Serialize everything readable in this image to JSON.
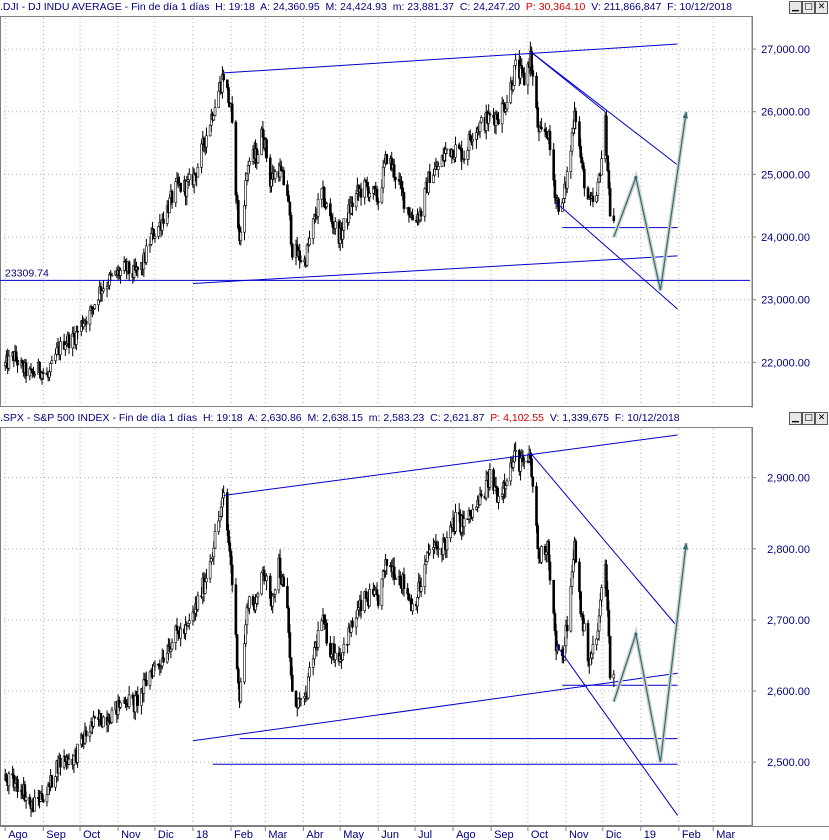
{
  "panels": [
    {
      "symbol": ".DJI",
      "name": "DJ INDU AVERAGE",
      "period": "Fin de día 1 días",
      "time_label": "H:",
      "time": "19:18",
      "open_label": "A:",
      "open": "24,360.95",
      "high_label": "M:",
      "high": "24,424.93",
      "low_label": "m:",
      "low": "23,881.37",
      "close_label": "C:",
      "close": "24,247.20",
      "p_label": "P:",
      "p": "30,364.10",
      "vol_label": "V:",
      "vol": "211,866,847",
      "date_label": "F:",
      "date": "10/12/2018",
      "ref_label": "23309.74"
    },
    {
      "symbol": ".SPX",
      "name": "S&P 500 INDEX",
      "period": "Fin de día 1 días",
      "time_label": "H:",
      "time": "19:18",
      "open_label": "A:",
      "open": "2,630.86",
      "high_label": "M:",
      "high": "2,638.15",
      "low_label": "m:",
      "low": "2,583.23",
      "close_label": "C:",
      "close": "2,621.87",
      "p_label": "P:",
      "p": "4,102.55",
      "vol_label": "V:",
      "vol": "1,339,675",
      "date_label": "F:",
      "date": "10/12/2018"
    }
  ],
  "window_buttons": [
    "minimize-icon",
    "maximize-icon",
    "close-icon"
  ],
  "colors": {
    "price": "#000000",
    "trendline": "#0000cc",
    "forecast": "#2f6f6f",
    "axis_text": "#000080",
    "grid": "#b0b0b0",
    "p_value": "#d00000"
  },
  "chart_data": [
    {
      "type": "candlestick",
      "title": ".DJI - DJ INDU AVERAGE",
      "ylim": [
        21400,
        27400
      ],
      "y_ticks": [
        22000,
        23000,
        24000,
        25000,
        26000,
        27000
      ],
      "y_tick_labels": [
        "22,000.00",
        "23,000.00",
        "24,000.00",
        "25,000.00",
        "26,000.00",
        "27,000.00"
      ],
      "x_range": [
        "2017-07-31",
        "2019-03-31"
      ],
      "series": [
        {
          "values": [
            [
              "2017-08-01",
              21950
            ],
            [
              "2017-08-08",
              22100
            ],
            [
              "2017-08-15",
              21900
            ],
            [
              "2017-08-22",
              21800
            ],
            [
              "2017-08-29",
              21900
            ],
            [
              "2017-09-05",
              21750
            ],
            [
              "2017-09-12",
              22150
            ],
            [
              "2017-09-19",
              22350
            ],
            [
              "2017-09-26",
              22380
            ],
            [
              "2017-10-03",
              22650
            ],
            [
              "2017-10-10",
              22800
            ],
            [
              "2017-10-17",
              23150
            ],
            [
              "2017-10-24",
              23300
            ],
            [
              "2017-10-31",
              23400
            ],
            [
              "2017-11-07",
              23500
            ],
            [
              "2017-11-14",
              23400
            ],
            [
              "2017-11-21",
              23550
            ],
            [
              "2017-11-28",
              24000
            ],
            [
              "2017-12-05",
              24200
            ],
            [
              "2017-12-12",
              24500
            ],
            [
              "2017-12-19",
              24800
            ],
            [
              "2017-12-27",
              24800
            ],
            [
              "2018-01-03",
              25000
            ],
            [
              "2018-01-10",
              25500
            ],
            [
              "2018-01-17",
              26000
            ],
            [
              "2018-01-26",
              26600
            ],
            [
              "2018-02-01",
              26000
            ],
            [
              "2018-02-08",
              23900
            ],
            [
              "2018-02-15",
              25200
            ],
            [
              "2018-02-22",
              25300
            ],
            [
              "2018-02-27",
              25700
            ],
            [
              "2018-03-05",
              24900
            ],
            [
              "2018-03-12",
              25100
            ],
            [
              "2018-03-19",
              24700
            ],
            [
              "2018-03-23",
              23800
            ],
            [
              "2018-04-02",
              23600
            ],
            [
              "2018-04-09",
              24200
            ],
            [
              "2018-04-16",
              24700
            ],
            [
              "2018-04-23",
              24300
            ],
            [
              "2018-05-01",
              24000
            ],
            [
              "2018-05-08",
              24400
            ],
            [
              "2018-05-15",
              24700
            ],
            [
              "2018-05-22",
              24800
            ],
            [
              "2018-06-01",
              24600
            ],
            [
              "2018-06-08",
              25300
            ],
            [
              "2018-06-15",
              25000
            ],
            [
              "2018-06-22",
              24600
            ],
            [
              "2018-06-29",
              24300
            ],
            [
              "2018-07-06",
              24400
            ],
            [
              "2018-07-13",
              25000
            ],
            [
              "2018-07-20",
              25100
            ],
            [
              "2018-07-27",
              25400
            ],
            [
              "2018-08-03",
              25400
            ],
            [
              "2018-08-10",
              25300
            ],
            [
              "2018-08-17",
              25700
            ],
            [
              "2018-08-24",
              25800
            ],
            [
              "2018-08-31",
              25900
            ],
            [
              "2018-09-07",
              25950
            ],
            [
              "2018-09-14",
              26200
            ],
            [
              "2018-09-21",
              26700
            ],
            [
              "2018-09-28",
              26500
            ],
            [
              "2018-10-03",
              26900
            ],
            [
              "2018-10-10",
              25600
            ],
            [
              "2018-10-17",
              25700
            ],
            [
              "2018-10-24",
              24600
            ],
            [
              "2018-10-29",
              24450
            ],
            [
              "2018-11-05",
              25400
            ],
            [
              "2018-11-08",
              26100
            ],
            [
              "2018-11-14",
              25100
            ],
            [
              "2018-11-20",
              24500
            ],
            [
              "2018-11-26",
              24600
            ],
            [
              "2018-12-03",
              25800
            ],
            [
              "2018-12-07",
              24400
            ],
            [
              "2018-12-10",
              24250
            ]
          ]
        }
      ],
      "annotations": [
        "23309.74"
      ]
    },
    {
      "type": "candlestick",
      "title": ".SPX - S&P 500 INDEX",
      "ylim": [
        2420,
        2960
      ],
      "y_ticks": [
        2500,
        2600,
        2700,
        2800,
        2900
      ],
      "y_tick_labels": [
        "2,500.00",
        "2,600.00",
        "2,700.00",
        "2,800.00",
        "2,900.00"
      ],
      "x_range": [
        "2017-07-31",
        "2019-03-31"
      ],
      "series": [
        {
          "values": [
            [
              "2017-08-01",
              2475
            ],
            [
              "2017-08-08",
              2470
            ],
            [
              "2017-08-15",
              2465
            ],
            [
              "2017-08-22",
              2435
            ],
            [
              "2017-08-29",
              2450
            ],
            [
              "2017-09-05",
              2460
            ],
            [
              "2017-09-12",
              2495
            ],
            [
              "2017-09-19",
              2505
            ],
            [
              "2017-09-26",
              2505
            ],
            [
              "2017-10-03",
              2530
            ],
            [
              "2017-10-10",
              2550
            ],
            [
              "2017-10-17",
              2560
            ],
            [
              "2017-10-24",
              2565
            ],
            [
              "2017-10-31",
              2575
            ],
            [
              "2017-11-07",
              2590
            ],
            [
              "2017-11-14",
              2580
            ],
            [
              "2017-11-21",
              2600
            ],
            [
              "2017-11-28",
              2630
            ],
            [
              "2017-12-05",
              2640
            ],
            [
              "2017-12-12",
              2665
            ],
            [
              "2017-12-19",
              2680
            ],
            [
              "2017-12-27",
              2685
            ],
            [
              "2018-01-03",
              2715
            ],
            [
              "2018-01-10",
              2750
            ],
            [
              "2018-01-17",
              2800
            ],
            [
              "2018-01-26",
              2870
            ],
            [
              "2018-02-01",
              2780
            ],
            [
              "2018-02-08",
              2590
            ],
            [
              "2018-02-15",
              2730
            ],
            [
              "2018-02-22",
              2720
            ],
            [
              "2018-02-27",
              2780
            ],
            [
              "2018-03-05",
              2720
            ],
            [
              "2018-03-12",
              2780
            ],
            [
              "2018-03-19",
              2710
            ],
            [
              "2018-03-23",
              2590
            ],
            [
              "2018-04-02",
              2580
            ],
            [
              "2018-04-09",
              2650
            ],
            [
              "2018-04-16",
              2700
            ],
            [
              "2018-04-23",
              2660
            ],
            [
              "2018-05-01",
              2650
            ],
            [
              "2018-05-08",
              2680
            ],
            [
              "2018-05-15",
              2710
            ],
            [
              "2018-05-22",
              2730
            ],
            [
              "2018-06-01",
              2730
            ],
            [
              "2018-06-08",
              2780
            ],
            [
              "2018-06-15",
              2770
            ],
            [
              "2018-06-22",
              2750
            ],
            [
              "2018-06-29",
              2720
            ],
            [
              "2018-07-06",
              2750
            ],
            [
              "2018-07-13",
              2800
            ],
            [
              "2018-07-20",
              2800
            ],
            [
              "2018-07-27",
              2810
            ],
            [
              "2018-08-03",
              2840
            ],
            [
              "2018-08-10",
              2835
            ],
            [
              "2018-08-17",
              2850
            ],
            [
              "2018-08-24",
              2870
            ],
            [
              "2018-08-31",
              2900
            ],
            [
              "2018-09-07",
              2875
            ],
            [
              "2018-09-14",
              2905
            ],
            [
              "2018-09-21",
              2930
            ],
            [
              "2018-09-28",
              2915
            ],
            [
              "2018-10-03",
              2925
            ],
            [
              "2018-10-10",
              2785
            ],
            [
              "2018-10-17",
              2810
            ],
            [
              "2018-10-24",
              2660
            ],
            [
              "2018-10-29",
              2640
            ],
            [
              "2018-11-05",
              2740
            ],
            [
              "2018-11-08",
              2805
            ],
            [
              "2018-11-14",
              2700
            ],
            [
              "2018-11-20",
              2645
            ],
            [
              "2018-11-26",
              2670
            ],
            [
              "2018-12-03",
              2790
            ],
            [
              "2018-12-07",
              2630
            ],
            [
              "2018-12-10",
              2622
            ]
          ]
        }
      ]
    }
  ],
  "x_axis": {
    "labels": [
      "Ago",
      "Sep",
      "Oct",
      "Nov",
      "Dic",
      "18",
      "Feb",
      "Mar",
      "Abr",
      "May",
      "Jun",
      "Jul",
      "Ago",
      "Sep",
      "Oct",
      "Nov",
      "Dic",
      "19",
      "Feb",
      "Mar"
    ],
    "dates": [
      "2017-08-01",
      "2017-09-01",
      "2017-10-01",
      "2017-11-01",
      "2017-12-01",
      "2018-01-01",
      "2018-02-01",
      "2018-03-01",
      "2018-04-01",
      "2018-05-01",
      "2018-06-01",
      "2018-07-01",
      "2018-08-01",
      "2018-09-01",
      "2018-10-01",
      "2018-11-01",
      "2018-12-01",
      "2019-01-01",
      "2019-02-01",
      "2019-03-01"
    ]
  },
  "drawings": [
    {
      "trendlines": [
        [
          [
            "2018-01-26",
            26620
          ],
          [
            "2019-01-31",
            27080
          ]
        ],
        [
          [
            "2018-01-01",
            23260
          ],
          [
            "2019-01-31",
            23700
          ]
        ],
        [
          [
            "2018-10-03",
            26960
          ],
          [
            "2019-01-31",
            25150
          ]
        ],
        [
          [
            "2018-10-03",
            26960
          ],
          [
            "2018-12-03",
            26000
          ]
        ],
        [
          [
            "2018-10-24",
            24550
          ],
          [
            "2019-01-31",
            22850
          ]
        ],
        [
          [
            "2018-10-29",
            24150
          ],
          [
            "2019-01-31",
            24150
          ]
        ]
      ],
      "forecast": [
        [
          "2018-12-10",
          24000
        ],
        [
          "2018-12-28",
          24950
        ],
        [
          "2019-01-17",
          23150
        ],
        [
          "2019-02-07",
          26000
        ]
      ]
    },
    {
      "trendlines": [
        [
          [
            "2018-01-26",
            2875
          ],
          [
            "2019-01-31",
            2960
          ]
        ],
        [
          [
            "2018-01-01",
            2530
          ],
          [
            "2019-01-31",
            2625
          ]
        ],
        [
          [
            "2018-10-03",
            2935
          ],
          [
            "2019-01-31",
            2690
          ]
        ],
        [
          [
            "2018-10-24",
            2665
          ],
          [
            "2019-01-31",
            2425
          ]
        ],
        [
          [
            "2018-02-08",
            2533
          ],
          [
            "2019-01-31",
            2533
          ]
        ],
        [
          [
            "2018-01-17",
            2497
          ],
          [
            "2019-01-31",
            2497
          ]
        ],
        [
          [
            "2018-10-29",
            2608
          ],
          [
            "2019-01-31",
            2608
          ]
        ]
      ],
      "forecast": [
        [
          "2018-12-10",
          2585
        ],
        [
          "2018-12-28",
          2680
        ],
        [
          "2019-01-17",
          2500
        ],
        [
          "2019-02-07",
          2808
        ]
      ]
    }
  ]
}
